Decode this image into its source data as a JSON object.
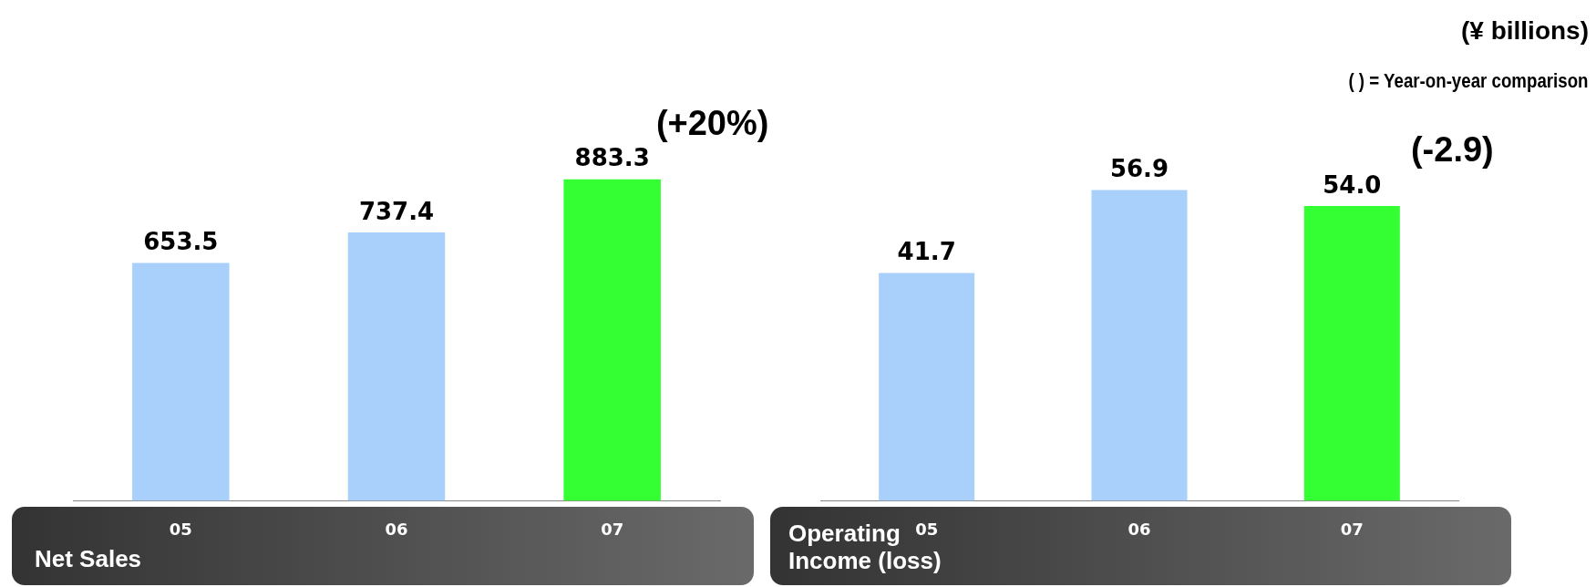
{
  "chart_data": [
    {
      "type": "bar",
      "title": "Net Sales",
      "categories": [
        "05",
        "06",
        "07"
      ],
      "values": [
        653.5,
        737.4,
        883.3
      ],
      "value_labels": [
        "653.5",
        "737.4",
        "883.3"
      ],
      "colors": [
        "#a8d0fa",
        "#a8d0fa",
        "#33ff33"
      ],
      "tick_labels": "x",
      "grid": false,
      "legend": false,
      "annotations": [
        {
          "text": "(+20%)",
          "x": "07",
          "y": 883.3
        }
      ]
    },
    {
      "type": "bar",
      "title": "Operating Income (loss)",
      "categories": [
        "05",
        "06",
        "07"
      ],
      "values": [
        41.7,
        56.9,
        54.0
      ],
      "value_labels": [
        "41.7",
        "56.9",
        "54.0"
      ],
      "colors": [
        "#a8d0fa",
        "#a8d0fa",
        "#33ff33"
      ],
      "tick_labels": "x",
      "grid": false,
      "legend": false,
      "annotations": [
        {
          "text": "(-2.9)",
          "x": "07",
          "y": 54.0
        },
        "(¥ billions)",
        "(   ) = Year-on-year comparison"
      ]
    }
  ]
}
